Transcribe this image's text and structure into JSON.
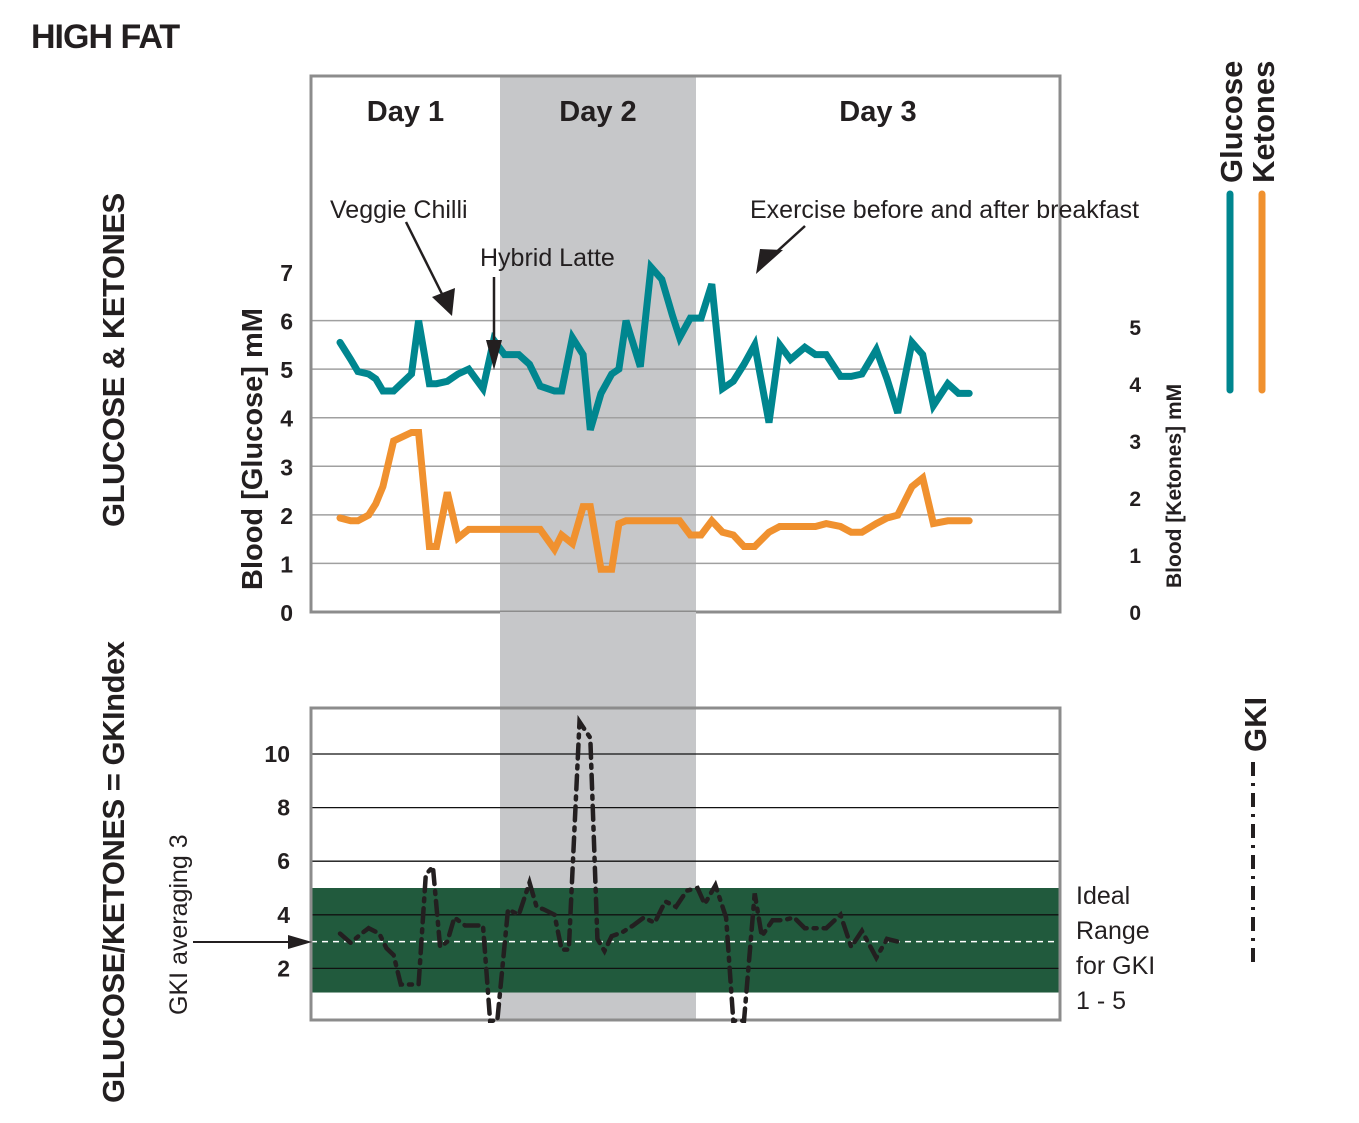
{
  "page": {
    "title": "HIGH FAT",
    "section_top_title": "GLUCOSE & KETONES",
    "section_bottom_title": "GLUCOSE/KETONES = GKIndex"
  },
  "colors": {
    "glucose": "#00868f",
    "ketones": "#f0912f",
    "gki": "#231f20",
    "ideal_range": "#215a3d",
    "day_shade": "#c6c7c9",
    "grid": "#a0a0a0",
    "frame": "#8c8c8c"
  },
  "chart_data": [
    {
      "type": "line",
      "title": "GLUCOSE & KETONES",
      "values_note": "Approximate: each value is a visual estimate read against the gridlines (not printed on the chart); precision about ±0.1 mM.",
      "days": [
        {
          "label": "Day 1",
          "shaded": false
        },
        {
          "label": "Day 2",
          "shaded": true
        },
        {
          "label": "Day 3",
          "shaded": false
        }
      ],
      "ylabel_left": "Blood [Glucose] mM",
      "ylabel_right": "Blood [Ketones] mM",
      "yticks_left": [
        "0",
        "1",
        "2",
        "3",
        "4",
        "5",
        "6",
        "7"
      ],
      "yticks_right": [
        "0",
        "1",
        "2",
        "3",
        "4",
        "5"
      ],
      "ylim_left": [
        0,
        7
      ],
      "ylim_right": [
        0,
        5
      ],
      "grid": true,
      "legend": {
        "placement": "right",
        "entries": [
          "Glucose",
          "Ketones"
        ]
      },
      "annotations": [
        {
          "text": "Veggie Chilli",
          "series": "Glucose",
          "day": 1
        },
        {
          "text": "Hybrid Latte",
          "series": "Glucose",
          "day": 1
        },
        {
          "text": "Exercise before and after breakfast",
          "series": "Glucose",
          "day": 3
        }
      ],
      "series": [
        {
          "name": "Glucose",
          "axis": "left",
          "t": [
            0.0,
            0.03,
            0.05,
            0.08,
            0.1,
            0.12,
            0.15,
            0.2,
            0.22,
            0.25,
            0.27,
            0.3,
            0.33,
            0.36,
            0.4,
            0.43,
            0.46,
            0.5,
            0.53,
            0.56,
            0.6,
            0.62,
            0.65,
            0.68,
            0.7,
            0.73,
            0.76,
            0.78,
            0.8,
            0.84,
            0.87,
            0.9,
            0.93,
            0.95,
            0.98,
            1.01,
            1.04,
            1.07,
            1.1,
            1.13,
            1.16,
            1.2,
            1.23,
            1.26,
            1.3,
            1.33,
            1.36,
            1.4,
            1.43,
            1.46,
            1.5,
            1.53,
            1.56,
            1.6,
            1.63,
            1.66,
            1.7,
            1.73,
            1.76,
            1.8,
            1.83,
            1.86,
            1.9,
            1.93,
            1.96,
            2.0
          ],
          "values": [
            5.55,
            5.2,
            4.95,
            4.9,
            4.8,
            4.55,
            4.55,
            4.9,
            6.0,
            4.7,
            4.7,
            4.75,
            4.9,
            5.0,
            4.6,
            5.6,
            5.3,
            5.3,
            5.1,
            4.65,
            4.55,
            4.55,
            5.65,
            5.3,
            3.75,
            4.5,
            4.9,
            5.0,
            6.0,
            5.05,
            7.1,
            6.85,
            6.1,
            5.65,
            6.05,
            6.05,
            6.75,
            4.6,
            4.75,
            5.1,
            5.5,
            3.9,
            5.5,
            5.2,
            5.45,
            5.3,
            5.3,
            4.85,
            4.85,
            4.9,
            5.4,
            4.8,
            4.1,
            5.55,
            5.3,
            4.25,
            4.7,
            4.5,
            4.5,
            4.5,
            4.5,
            4.5,
            4.5,
            4.5,
            4.5,
            4.5
          ]
        },
        {
          "name": "Ketones",
          "axis": "right",
          "t": [
            0.0,
            0.03,
            0.05,
            0.08,
            0.1,
            0.12,
            0.15,
            0.2,
            0.22,
            0.25,
            0.27,
            0.3,
            0.33,
            0.36,
            0.4,
            0.43,
            0.46,
            0.5,
            0.53,
            0.56,
            0.6,
            0.62,
            0.65,
            0.68,
            0.7,
            0.73,
            0.76,
            0.78,
            0.8,
            0.84,
            0.87,
            0.9,
            0.93,
            0.95,
            0.98,
            1.01,
            1.04,
            1.07,
            1.1,
            1.13,
            1.16,
            1.2,
            1.23,
            1.26,
            1.3,
            1.33,
            1.36,
            1.4,
            1.43,
            1.46,
            1.5,
            1.53,
            1.56,
            1.6,
            1.63,
            1.66,
            1.7,
            1.73,
            1.76,
            1.8,
            1.83,
            1.86,
            1.9,
            1.93,
            1.96,
            2.0
          ],
          "values": [
            1.65,
            1.6,
            1.6,
            1.7,
            1.9,
            2.2,
            3.0,
            3.15,
            3.15,
            1.15,
            1.15,
            2.1,
            1.3,
            1.45,
            1.45,
            1.45,
            1.45,
            1.45,
            1.45,
            1.45,
            1.1,
            1.35,
            1.2,
            1.85,
            1.85,
            0.75,
            0.75,
            1.55,
            1.6,
            1.6,
            1.6,
            1.6,
            1.6,
            1.6,
            1.35,
            1.35,
            1.6,
            1.4,
            1.35,
            1.15,
            1.15,
            1.4,
            1.5,
            1.5,
            1.5,
            1.5,
            1.55,
            1.5,
            1.4,
            1.4,
            1.55,
            1.65,
            1.7,
            2.2,
            2.35,
            1.55,
            1.6,
            1.6,
            1.6,
            1.6,
            1.6,
            1.6,
            1.6,
            1.6,
            1.6,
            1.6
          ]
        }
      ]
    },
    {
      "type": "line",
      "title": "GLUCOSE/KETONES = GKIndex",
      "values_note": "Approximate: GKI values are visual estimates read against the gridlines (not printed on the chart); precision about ±0.2.",
      "ylabel": "",
      "yticks": [
        "2",
        "4",
        "6",
        "8",
        "10"
      ],
      "ylim": [
        0,
        11.7
      ],
      "grid": true,
      "legend": {
        "placement": "right",
        "entries": [
          "GKI"
        ]
      },
      "ideal_range": {
        "low": 1.1,
        "high": 5.0,
        "label_lines": [
          "Ideal",
          "Range",
          "for GKI",
          "1 - 5"
        ]
      },
      "average": {
        "value": 3,
        "label": "GKI averaging 3"
      },
      "series": [
        {
          "name": "GKI",
          "style": "dash-dot",
          "t": [
            0.0,
            0.03,
            0.06,
            0.08,
            0.11,
            0.13,
            0.15,
            0.17,
            0.2,
            0.22,
            0.24,
            0.26,
            0.28,
            0.3,
            0.32,
            0.35,
            0.37,
            0.4,
            0.42,
            0.44,
            0.47,
            0.5,
            0.53,
            0.55,
            0.57,
            0.6,
            0.62,
            0.64,
            0.67,
            0.7,
            0.72,
            0.74,
            0.76,
            0.79,
            0.82,
            0.85,
            0.88,
            0.91,
            0.94,
            0.97,
            1.0,
            1.02,
            1.05,
            1.08,
            1.1,
            1.13,
            1.16,
            1.18,
            1.21,
            1.24,
            1.27,
            1.3,
            1.33,
            1.36,
            1.4,
            1.43,
            1.46,
            1.5,
            1.53,
            1.56,
            1.6,
            1.63,
            1.66,
            1.7,
            1.73,
            1.76,
            1.8,
            1.83,
            1.86,
            1.9,
            1.93,
            1.96,
            2.0
          ],
          "values": [
            3.3,
            2.95,
            3.3,
            3.5,
            3.3,
            2.75,
            2.5,
            1.4,
            1.4,
            1.4,
            5.5,
            5.8,
            2.8,
            3.0,
            3.9,
            3.6,
            3.6,
            3.6,
            0.05,
            0.05,
            4.2,
            4.0,
            5.2,
            4.3,
            4.2,
            4.0,
            2.7,
            2.7,
            11.2,
            10.6,
            3.1,
            2.65,
            3.2,
            3.35,
            3.6,
            3.9,
            3.7,
            4.5,
            4.3,
            4.9,
            5.0,
            4.4,
            5.1,
            3.9,
            0.05,
            0.05,
            4.8,
            3.2,
            3.8,
            3.8,
            3.9,
            3.5,
            3.5,
            3.5,
            4.0,
            2.8,
            3.4,
            2.4,
            3.1,
            3.0,
            3.0,
            3.0,
            3.0,
            3.0,
            3.0,
            3.0,
            3.0,
            3.0,
            3.0,
            3.0,
            3.0,
            3.0,
            3.0
          ]
        }
      ]
    }
  ]
}
